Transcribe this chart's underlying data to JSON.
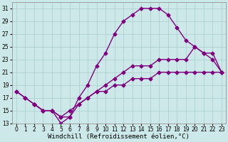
{
  "xlabel": "Windchill (Refroidissement éolien,°C)",
  "bg_color": "#cce8e8",
  "line_color": "#800080",
  "grid_color": "#aacccc",
  "xlim": [
    -0.5,
    23.5
  ],
  "ylim": [
    13,
    32
  ],
  "xticks": [
    0,
    1,
    2,
    3,
    4,
    5,
    6,
    7,
    8,
    9,
    10,
    11,
    12,
    13,
    14,
    15,
    16,
    17,
    18,
    19,
    20,
    21,
    22,
    23
  ],
  "yticks": [
    13,
    15,
    17,
    19,
    21,
    23,
    25,
    27,
    29,
    31
  ],
  "curve_upper_x": [
    0,
    1,
    2,
    3,
    4,
    5,
    6,
    7,
    8,
    9,
    10,
    11,
    12,
    13,
    14,
    15,
    16,
    17,
    18,
    19,
    20,
    21,
    22,
    23
  ],
  "curve_upper_y": [
    18,
    17,
    16,
    15,
    15,
    13,
    14,
    17,
    19,
    22,
    24,
    27,
    29,
    30,
    31,
    31,
    31,
    30,
    28,
    26,
    25,
    24,
    23,
    21
  ],
  "curve_lower_x": [
    2,
    3,
    4,
    5,
    6,
    7,
    8,
    9,
    10,
    11,
    12,
    13,
    14,
    15,
    16,
    17,
    18,
    19,
    20,
    21,
    22,
    23
  ],
  "curve_lower_y": [
    16,
    15,
    15,
    14,
    14,
    16,
    17,
    18,
    19,
    20,
    21,
    22,
    22,
    22,
    23,
    23,
    23,
    23,
    25,
    24,
    24,
    21
  ],
  "curve_diag_x": [
    0,
    1,
    2,
    3,
    4,
    5,
    6,
    7,
    8,
    9,
    10,
    11,
    12,
    13,
    14,
    15,
    16,
    17,
    18,
    19,
    20,
    21,
    22,
    23
  ],
  "curve_diag_y": [
    18,
    17,
    16,
    15,
    15,
    14,
    15,
    16,
    17,
    18,
    18,
    19,
    19,
    20,
    20,
    20,
    21,
    21,
    21,
    21,
    21,
    21,
    21,
    21
  ],
  "marker": "D",
  "markersize": 2.5,
  "linewidth": 1.0,
  "xlabel_fontsize": 6.5,
  "tick_fontsize": 5.5
}
